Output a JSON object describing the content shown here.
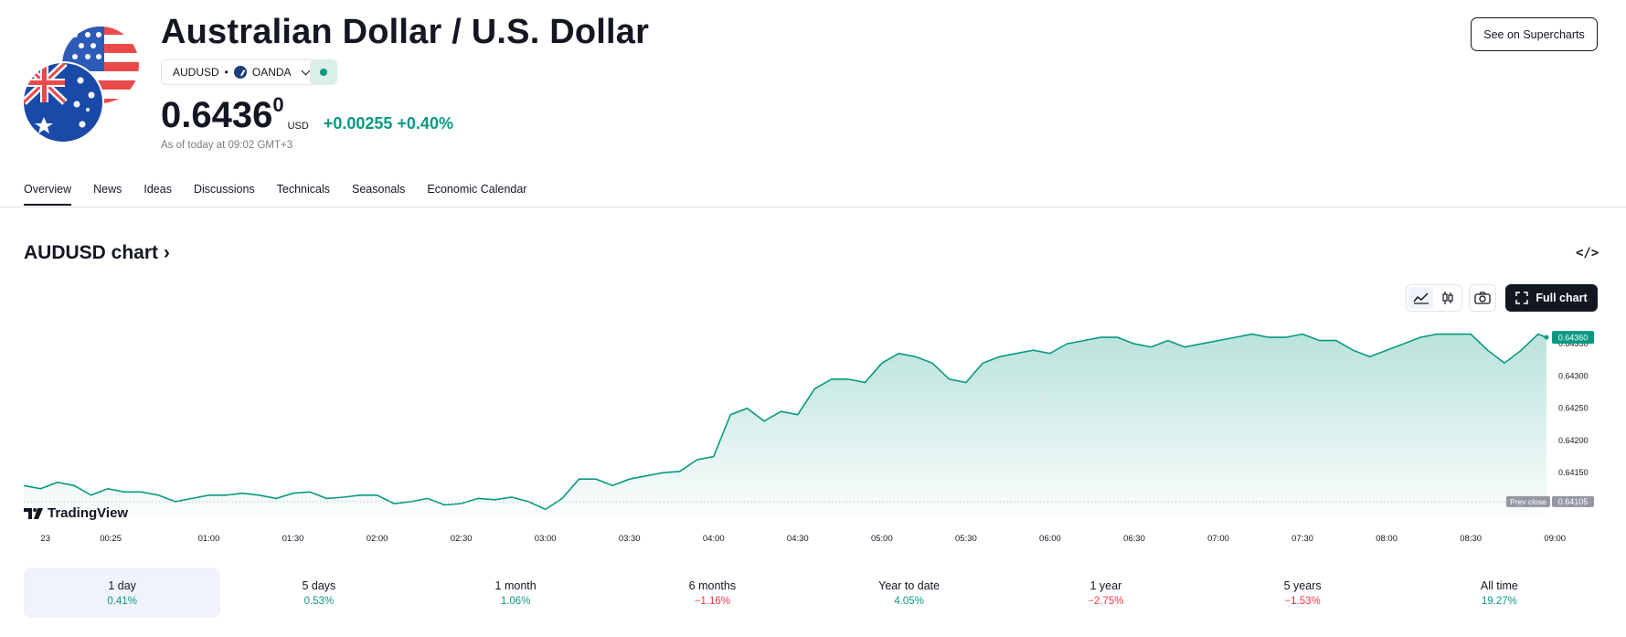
{
  "header": {
    "title": "Australian Dollar / U.S. Dollar",
    "symbol": "AUDUSD",
    "separator": "•",
    "exchange": "OANDA",
    "price_main": "0.6436",
    "price_sup": "0",
    "currency": "USD",
    "change": "+0.00255 +0.40%",
    "as_of": "As of today at 09:02 GMT+3",
    "supercharts_label": "See on Supercharts"
  },
  "tabs": [
    {
      "label": "Overview"
    },
    {
      "label": "News"
    },
    {
      "label": "Ideas"
    },
    {
      "label": "Discussions"
    },
    {
      "label": "Technicals"
    },
    {
      "label": "Seasonals"
    },
    {
      "label": "Economic Calendar"
    }
  ],
  "section": {
    "title": "AUDUSD chart",
    "title_arrow": "›",
    "embed_icon": "</>",
    "full_chart_label": "Full chart",
    "brand": "TradingView"
  },
  "colors": {
    "accent_green": "#089981",
    "accent_red": "#f23645",
    "dark": "#131722"
  },
  "chart_data": {
    "type": "area",
    "xlim": [
      -0.1,
      8.95
    ],
    "ylim": [
      0.64085,
      0.6438
    ],
    "x_ticks": [
      {
        "x": 0,
        "label": "23"
      },
      {
        "x": 0.4167,
        "label": "00:25"
      },
      {
        "x": 1.0,
        "label": "01:00"
      },
      {
        "x": 1.5,
        "label": "01:30"
      },
      {
        "x": 2.0,
        "label": "02:00"
      },
      {
        "x": 2.5,
        "label": "02:30"
      },
      {
        "x": 3.0,
        "label": "03:00"
      },
      {
        "x": 3.5,
        "label": "03:30"
      },
      {
        "x": 4.0,
        "label": "04:00"
      },
      {
        "x": 4.5,
        "label": "04:30"
      },
      {
        "x": 5.0,
        "label": "05:00"
      },
      {
        "x": 5.5,
        "label": "05:30"
      },
      {
        "x": 6.0,
        "label": "06:00"
      },
      {
        "x": 6.5,
        "label": "06:30"
      },
      {
        "x": 7.0,
        "label": "07:00"
      },
      {
        "x": 7.5,
        "label": "07:30"
      },
      {
        "x": 8.0,
        "label": "08:00"
      },
      {
        "x": 8.5,
        "label": "08:30"
      },
      {
        "x": 9.0,
        "label": "09:00"
      }
    ],
    "y_ticks": [
      0.6415,
      0.642,
      0.6425,
      0.643,
      0.6435
    ],
    "prev_close": 0.64105,
    "prev_close_label": "Prev close",
    "last_price": 0.6436,
    "series": [
      {
        "x": [
          -0.1,
          0.0,
          0.1,
          0.2,
          0.3,
          0.4,
          0.5,
          0.6,
          0.7,
          0.8,
          0.9,
          1.0,
          1.1,
          1.2,
          1.3,
          1.4,
          1.5,
          1.6,
          1.7,
          1.8,
          1.9,
          2.0,
          2.1,
          2.2,
          2.3,
          2.4,
          2.5,
          2.6,
          2.7,
          2.8,
          2.9,
          3.0,
          3.1,
          3.2,
          3.3,
          3.4,
          3.5,
          3.6,
          3.7,
          3.8,
          3.9,
          4.0,
          4.1,
          4.2,
          4.3,
          4.4,
          4.5,
          4.6,
          4.7,
          4.8,
          4.9,
          5.0,
          5.1,
          5.2,
          5.3,
          5.4,
          5.5,
          5.6,
          5.7,
          5.8,
          5.9,
          6.0,
          6.1,
          6.2,
          6.3,
          6.4,
          6.5,
          6.6,
          6.7,
          6.8,
          6.9,
          7.0,
          7.1,
          7.2,
          7.3,
          7.4,
          7.5,
          7.6,
          7.7,
          7.8,
          7.9,
          8.0,
          8.1,
          8.2,
          8.3,
          8.4,
          8.5,
          8.6,
          8.7,
          8.8,
          8.9,
          8.95
        ],
        "y": [
          0.6413,
          0.64125,
          0.64135,
          0.6413,
          0.64115,
          0.64125,
          0.6412,
          0.6412,
          0.64115,
          0.64105,
          0.6411,
          0.64115,
          0.64115,
          0.64118,
          0.64115,
          0.6411,
          0.64118,
          0.6412,
          0.6411,
          0.64112,
          0.64115,
          0.64115,
          0.64102,
          0.64105,
          0.6411,
          0.641,
          0.64102,
          0.6411,
          0.64108,
          0.64112,
          0.64105,
          0.64093,
          0.6411,
          0.6414,
          0.6414,
          0.6413,
          0.6414,
          0.64145,
          0.6415,
          0.64152,
          0.6417,
          0.64175,
          0.6424,
          0.6425,
          0.6423,
          0.64245,
          0.6424,
          0.6428,
          0.64295,
          0.64295,
          0.6429,
          0.6432,
          0.64335,
          0.6433,
          0.6432,
          0.64295,
          0.6429,
          0.6432,
          0.6433,
          0.64335,
          0.6434,
          0.64335,
          0.6435,
          0.64355,
          0.6436,
          0.6436,
          0.6435,
          0.64345,
          0.64355,
          0.64345,
          0.6435,
          0.64355,
          0.6436,
          0.64365,
          0.6436,
          0.6436,
          0.64365,
          0.64355,
          0.64355,
          0.6434,
          0.6433,
          0.6434,
          0.6435,
          0.6436,
          0.64365,
          0.64365,
          0.64365,
          0.6434,
          0.6432,
          0.6434,
          0.64365,
          0.6436
        ]
      }
    ]
  },
  "periods": [
    {
      "label": "1 day",
      "value": "0.41%",
      "sign": "pos",
      "active": true
    },
    {
      "label": "5 days",
      "value": "0.53%",
      "sign": "pos",
      "active": false
    },
    {
      "label": "1 month",
      "value": "1.06%",
      "sign": "pos",
      "active": false
    },
    {
      "label": "6 months",
      "value": "−1.16%",
      "sign": "neg",
      "active": false
    },
    {
      "label": "Year to date",
      "value": "4.05%",
      "sign": "pos",
      "active": false
    },
    {
      "label": "1 year",
      "value": "−2.75%",
      "sign": "neg",
      "active": false
    },
    {
      "label": "5 years",
      "value": "−1.53%",
      "sign": "neg",
      "active": false
    },
    {
      "label": "All time",
      "value": "19.27%",
      "sign": "pos",
      "active": false
    }
  ]
}
